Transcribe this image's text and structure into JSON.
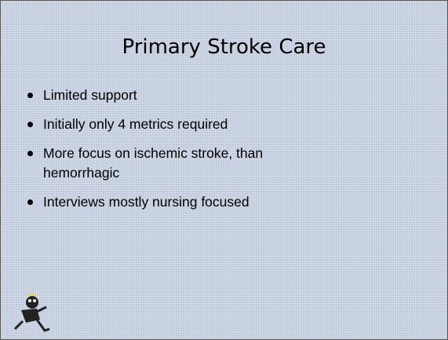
{
  "slide": {
    "title": "Primary Stroke Care",
    "bullets": [
      "Limited support",
      "Initially only 4 metrics required",
      "More focus on ischemic stroke, than hemorrhagic",
      "Interviews mostly nursing focused"
    ]
  }
}
